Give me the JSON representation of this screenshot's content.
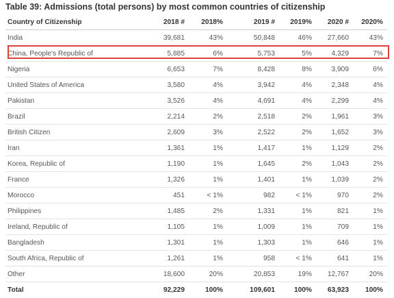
{
  "title": "Table 39: Admissions (total persons) by most common countries of citizenship",
  "columns": [
    "Country of Citizenship",
    "2018 #",
    "2018%",
    "2019 #",
    "2019%",
    "2020 #",
    "2020%"
  ],
  "rows": [
    [
      "India",
      "39,681",
      "43%",
      "50,848",
      "46%",
      "27,660",
      "43%"
    ],
    [
      "China, People's Republic of",
      "5,885",
      "6%",
      "5,753",
      "5%",
      "4,329",
      "7%"
    ],
    [
      "Nigeria",
      "6,653",
      "7%",
      "8,428",
      "8%",
      "3,909",
      "6%"
    ],
    [
      "United States of America",
      "3,580",
      "4%",
      "3,942",
      "4%",
      "2,348",
      "4%"
    ],
    [
      "Pakistan",
      "3,526",
      "4%",
      "4,691",
      "4%",
      "2,299",
      "4%"
    ],
    [
      "Brazil",
      "2,214",
      "2%",
      "2,518",
      "2%",
      "1,961",
      "3%"
    ],
    [
      "British Citizen",
      "2,609",
      "3%",
      "2,522",
      "2%",
      "1,652",
      "3%"
    ],
    [
      "Iran",
      "1,361",
      "1%",
      "1,417",
      "1%",
      "1,129",
      "2%"
    ],
    [
      "Korea, Republic of",
      "1,190",
      "1%",
      "1,645",
      "2%",
      "1,043",
      "2%"
    ],
    [
      "France",
      "1,326",
      "1%",
      "1,401",
      "1%",
      "1,039",
      "2%"
    ],
    [
      "Morocco",
      "451",
      "< 1%",
      "982",
      "< 1%",
      "970",
      "2%"
    ],
    [
      "Philippines",
      "1,485",
      "2%",
      "1,331",
      "1%",
      "821",
      "1%"
    ],
    [
      "Ireland, Republic of",
      "1,105",
      "1%",
      "1,009",
      "1%",
      "709",
      "1%"
    ],
    [
      "Bangladesh",
      "1,301",
      "1%",
      "1,303",
      "1%",
      "646",
      "1%"
    ],
    [
      "South Africa, Republic of",
      "1,261",
      "1%",
      "958",
      "< 1%",
      "641",
      "1%"
    ],
    [
      "Other",
      "18,600",
      "20%",
      "20,853",
      "19%",
      "12,767",
      "20%"
    ]
  ],
  "total": [
    "Total",
    "92,229",
    "100%",
    "109,601",
    "100%",
    "63,923",
    "100%"
  ],
  "highlight_color": "#d9443a"
}
